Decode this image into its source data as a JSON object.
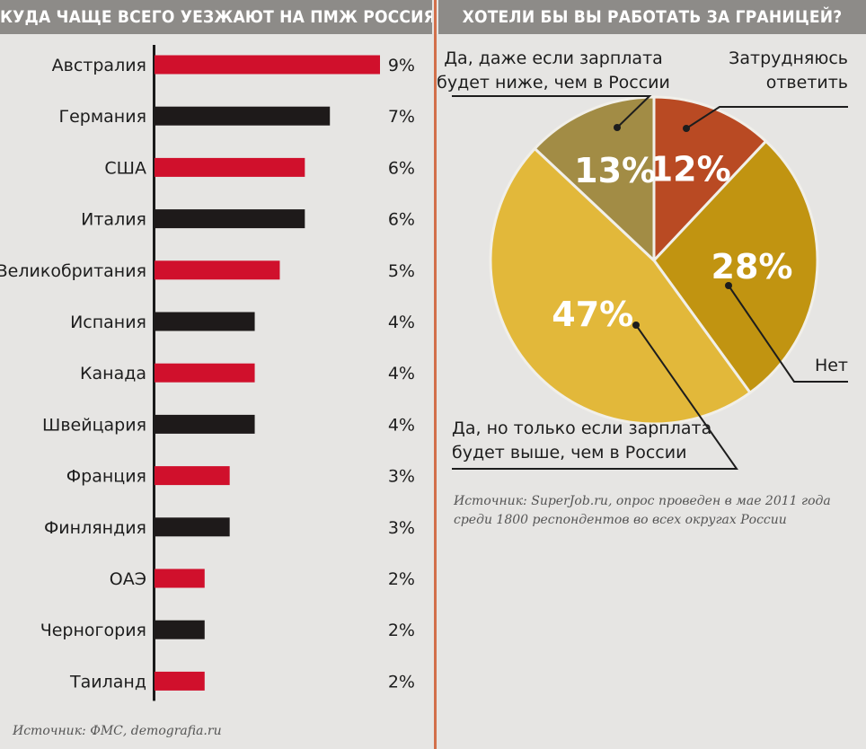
{
  "left_title": "КУДА ЧАЩЕ ВСЕГО УЕЗЖАЮТ НА ПМЖ РОССИЯНЕ",
  "right_title": "ХОТЕЛИ БЫ ВЫ РАБОТАТЬ ЗА ГРАНИЦЕЙ?",
  "left_source": "Источник: ФМС, demografia.ru",
  "right_source": [
    "Источник: SuperJob.ru, опрос проведен в мае 2011 года",
    "среди 1800 респондентов во всех округах России"
  ],
  "colors": {
    "red": "#d0102c",
    "black": "#1e1a1a",
    "accent": "#d2704b",
    "header": "#8d8b88"
  },
  "chart_data": [
    {
      "type": "bar",
      "orientation": "horizontal",
      "title": "КУДА ЧАЩЕ ВСЕГО УЕЗЖАЮТ НА ПМЖ РОССИЯНЕ",
      "categories": [
        "Австралия",
        "Германия",
        "США",
        "Италия",
        "Великобритания",
        "Испания",
        "Канада",
        "Швейцария",
        "Франция",
        "Финляндия",
        "ОАЭ",
        "Черногория",
        "Таиланд"
      ],
      "values": [
        9,
        7,
        6,
        6,
        5,
        4,
        4,
        4,
        3,
        3,
        2,
        2,
        2
      ],
      "value_labels": [
        "9%",
        "7%",
        "6%",
        "6%",
        "5%",
        "4%",
        "4%",
        "4%",
        "3%",
        "3%",
        "2%",
        "2%",
        "2%"
      ],
      "bar_colors": [
        "#d0102c",
        "#1e1a1a",
        "#d0102c",
        "#1e1a1a",
        "#d0102c",
        "#1e1a1a",
        "#d0102c",
        "#1e1a1a",
        "#d0102c",
        "#1e1a1a",
        "#d0102c",
        "#1e1a1a",
        "#d0102c"
      ],
      "xlim": [
        0,
        9
      ]
    },
    {
      "type": "pie",
      "title": "ХОТЕЛИ БЫ ВЫ РАБОТАТЬ ЗА ГРАНИЦЕЙ?",
      "slices": [
        {
          "label": "Затрудняюсь ответить",
          "value": 12,
          "display": "12%",
          "color": "#b94a23"
        },
        {
          "label": "Нет",
          "value": 28,
          "display": "28%",
          "color": "#c19411"
        },
        {
          "label": "Да, но только если зарплата будет выше, чем в России",
          "value": 47,
          "display": "47%",
          "color": "#e2b83a"
        },
        {
          "label": "Да, даже если зарплата будет ниже, чем в России",
          "value": 13,
          "display": "13%",
          "color": "#a28c45"
        }
      ],
      "annotations": {
        "lower_salary": [
          "Да, даже если зарплата",
          "будет ниже, чем в России"
        ],
        "unsure": [
          "Затрудняюсь",
          "ответить"
        ],
        "no": "Нет",
        "higher_salary": [
          "Да, но только если зарплата",
          "будет выше, чем в России"
        ]
      }
    }
  ]
}
